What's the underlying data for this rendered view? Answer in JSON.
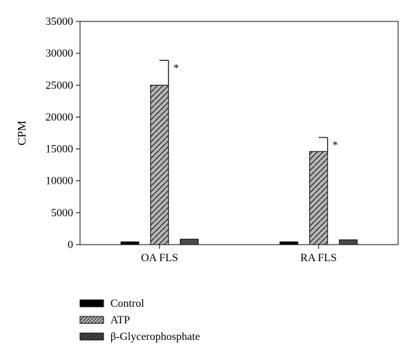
{
  "chart_data": {
    "type": "bar",
    "title": "",
    "xlabel": "",
    "ylabel": "CPM",
    "ylim": [
      0,
      35000
    ],
    "yticks": [
      0,
      5000,
      10000,
      15000,
      20000,
      25000,
      30000,
      35000
    ],
    "categories": [
      "OA FLS",
      "RA FLS"
    ],
    "series": [
      {
        "name": "Control",
        "values": [
          300,
          300
        ],
        "errors": [
          0,
          0
        ],
        "color": "#000000",
        "pattern": "solid"
      },
      {
        "name": "ATP",
        "values": [
          25000,
          14600
        ],
        "errors": [
          3900,
          2200
        ],
        "color": "#b4b4b4",
        "pattern": "hatch"
      },
      {
        "name": "β-Glycerophosphate",
        "values": [
          850,
          750
        ],
        "errors": [
          0,
          0
        ],
        "color": "#4a4a4a",
        "pattern": "hatch-dark"
      }
    ],
    "annotations": [
      {
        "text": "*",
        "category": "OA FLS",
        "series": "ATP"
      },
      {
        "text": "*",
        "category": "RA FLS",
        "series": "ATP"
      }
    ],
    "grid": false,
    "legend_position": "bottom-left"
  }
}
